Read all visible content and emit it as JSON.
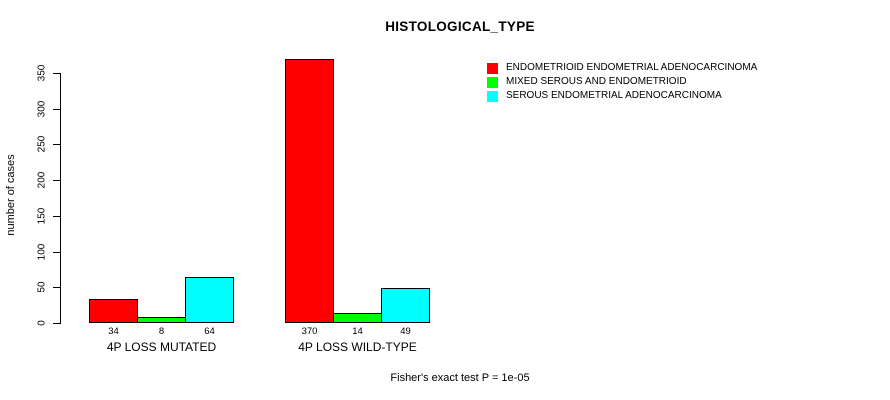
{
  "chart_data": {
    "type": "bar",
    "title": "HISTOLOGICAL_TYPE",
    "ylabel": "number of cases",
    "xlabel": "",
    "ylim": [
      0,
      350
    ],
    "yticks": [
      0,
      50,
      100,
      150,
      200,
      250,
      300,
      350
    ],
    "grid": false,
    "legend_position": "top-right",
    "categories": [
      "4P LOSS MUTATED",
      "4P LOSS WILD-TYPE"
    ],
    "series": [
      {
        "name": "ENDOMETRIOID ENDOMETRIAL ADENOCARCINOMA",
        "color": "#FF0000",
        "values": [
          34,
          370
        ]
      },
      {
        "name": "MIXED SEROUS AND ENDOMETRIOID",
        "color": "#00FF00",
        "values": [
          8,
          14
        ]
      },
      {
        "name": "SEROUS ENDOMETRIAL ADENOCARCINOMA",
        "color": "#00FFFF",
        "values": [
          64,
          49
        ]
      }
    ],
    "bar_value_labels": [
      [
        34,
        8,
        64
      ],
      [
        370,
        14,
        49
      ]
    ],
    "footnote": "Fisher's exact test P = 1e-05"
  }
}
